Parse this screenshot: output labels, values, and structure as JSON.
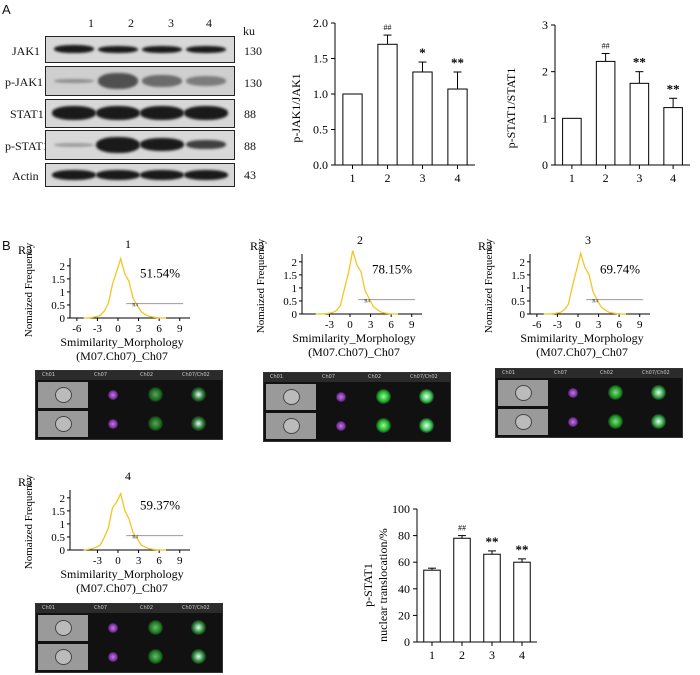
{
  "panel_letters": {
    "a": "A",
    "b": "B"
  },
  "western_blot": {
    "lane_labels": [
      "1",
      "2",
      "3",
      "4"
    ],
    "ku_header": "ku",
    "rows": [
      {
        "protein": "JAK1",
        "ku": "130"
      },
      {
        "protein": "p-JAK1",
        "ku": "130"
      },
      {
        "protein": "STAT1",
        "ku": "88"
      },
      {
        "protein": "p-STAT1",
        "ku": "88"
      },
      {
        "protein": "Actin",
        "ku": "43"
      }
    ]
  },
  "histograms": [
    {
      "sample": "1",
      "gate": "R3",
      "percent": "51.54%",
      "gate_label": "R4"
    },
    {
      "sample": "2",
      "gate": "R3",
      "percent": "78.15%",
      "gate_label": "R4"
    },
    {
      "sample": "3",
      "gate": "R3",
      "percent": "69.74%",
      "gate_label": "R4"
    },
    {
      "sample": "4",
      "gate": "R3",
      "percent": "59.37%",
      "gate_label": "R4"
    }
  ],
  "histogram_axes": {
    "ylabel": "Nomaized Frequency",
    "xlabel_line1": "Smimilarity_Morphology",
    "xlabel_line2": "(M07.Ch07)_Ch07"
  },
  "image_headers": [
    "Ch01",
    "Ch07",
    "Ch02",
    "Ch07/Ch02"
  ],
  "chart_data": [
    {
      "type": "bar",
      "categories": [
        "1",
        "2",
        "3",
        "4"
      ],
      "values": [
        1.0,
        1.7,
        1.31,
        1.07
      ],
      "errors": [
        0.0,
        0.13,
        0.14,
        0.24
      ],
      "annotations": [
        "",
        "##",
        "*",
        "**"
      ],
      "ylabel": "p-JAK1/JAK1",
      "ylim": [
        0,
        2.0
      ],
      "yticks": [
        "0.0",
        "0.5",
        "1.0",
        "1.5",
        "2.0"
      ]
    },
    {
      "type": "bar",
      "categories": [
        "1",
        "2",
        "3",
        "4"
      ],
      "values": [
        1.0,
        2.22,
        1.75,
        1.23
      ],
      "errors": [
        0.0,
        0.17,
        0.25,
        0.2
      ],
      "annotations": [
        "",
        "##",
        "**",
        "**"
      ],
      "ylabel": "p-STAT1/STAT1",
      "ylim": [
        0,
        3
      ],
      "yticks": [
        "0",
        "1",
        "2",
        "3"
      ]
    },
    {
      "type": "bar",
      "categories": [
        "1",
        "2",
        "3",
        "4"
      ],
      "values": [
        54,
        78,
        66,
        60
      ],
      "errors": [
        1.5,
        2,
        2.5,
        2.5
      ],
      "annotations": [
        "",
        "##",
        "**",
        "**"
      ],
      "ylabel_line1": "p-STAT1",
      "ylabel_line2": "nuclear translocation/%",
      "ylim": [
        0,
        100
      ],
      "yticks": [
        "0",
        "20",
        "40",
        "60",
        "80",
        "100"
      ]
    }
  ]
}
